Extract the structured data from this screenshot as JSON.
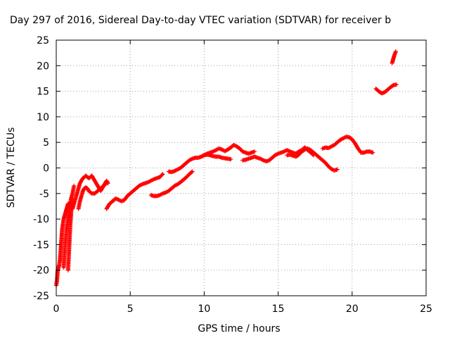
{
  "chart_data": {
    "type": "scatter",
    "title": "Day 297 of 2016, Sidereal Day-to-day VTEC variation (SDTVAR) for receiver b",
    "xlabel": "GPS time / hours",
    "ylabel": "SDTVAR / TECUs",
    "xlim": [
      0,
      25
    ],
    "ylim": [
      -25,
      25
    ],
    "xticks": [
      0,
      5,
      10,
      15,
      20,
      25
    ],
    "yticks": [
      -25,
      -20,
      -15,
      -10,
      -5,
      0,
      5,
      10,
      15,
      20,
      25
    ],
    "grid": true,
    "marker": "+",
    "color": "#ff0000",
    "series": [
      {
        "x": [
          0.0,
          0.05,
          0.1,
          0.15,
          0.2,
          0.25,
          0.3,
          0.35,
          0.4,
          0.45,
          0.5,
          0.55,
          0.6,
          0.65,
          0.7,
          0.75,
          0.8,
          0.85,
          0.9,
          1.0,
          1.1,
          1.2,
          1.3,
          1.4,
          1.5,
          1.6,
          1.7,
          1.8,
          1.9,
          2.0,
          2.1,
          2.2,
          2.3,
          2.4,
          2.5,
          2.6,
          2.7,
          2.8,
          2.9,
          3.0,
          3.1,
          3.2,
          3.3,
          3.4,
          3.5
        ],
        "y": [
          -23.0,
          -22.0,
          -20.0,
          -19.5,
          -19.0,
          -18.0,
          -16.0,
          -14.0,
          -12.0,
          -11.0,
          -10.0,
          -9.5,
          -9.0,
          -8.5,
          -8.0,
          -7.5,
          -7.0,
          -7.0,
          -7.0,
          -7.5,
          -8.0,
          -7.0,
          -6.0,
          -5.0,
          -4.0,
          -3.0,
          -2.5,
          -2.0,
          -1.8,
          -1.5,
          -1.8,
          -2.0,
          -1.8,
          -1.5,
          -2.0,
          -2.5,
          -3.0,
          -3.5,
          -4.0,
          -4.5,
          -4.0,
          -3.5,
          -3.0,
          -2.5,
          -3.0
        ]
      },
      {
        "x": [
          0.5,
          0.6,
          0.7,
          0.8,
          0.9,
          1.0,
          1.1,
          1.2
        ],
        "y": [
          -19.5,
          -15.0,
          -12.0,
          -10.0,
          -8.0,
          -6.0,
          -5.0,
          -3.5
        ]
      },
      {
        "x": [
          0.8,
          0.85,
          0.9,
          0.95,
          1.0,
          1.05,
          1.1
        ],
        "y": [
          -20.0,
          -17.0,
          -14.0,
          -11.0,
          -9.0,
          -7.0,
          -6.0
        ]
      },
      {
        "x": [
          1.5,
          1.6,
          1.7,
          1.8,
          1.9,
          2.0,
          2.1,
          2.2,
          2.4,
          2.6,
          2.8,
          3.0,
          3.2,
          3.4
        ],
        "y": [
          -8.0,
          -6.5,
          -5.5,
          -4.5,
          -4.0,
          -3.8,
          -4.0,
          -4.5,
          -5.0,
          -5.0,
          -4.5,
          -4.0,
          -3.5,
          -3.0
        ]
      },
      {
        "x": [
          3.4,
          3.5,
          3.6,
          3.7,
          3.8,
          3.9,
          4.0,
          4.2,
          4.4,
          4.6,
          4.8,
          5.0,
          5.2,
          5.4,
          5.6,
          5.8,
          6.0,
          6.2,
          6.4,
          6.6,
          6.8,
          7.0,
          7.2
        ],
        "y": [
          -8.0,
          -7.5,
          -7.0,
          -6.8,
          -6.5,
          -6.3,
          -6.0,
          -6.2,
          -6.5,
          -6.3,
          -5.5,
          -5.0,
          -4.5,
          -4.0,
          -3.5,
          -3.2,
          -3.0,
          -2.8,
          -2.5,
          -2.2,
          -2.0,
          -1.8,
          -1.2
        ]
      },
      {
        "x": [
          6.4,
          6.6,
          6.8,
          7.0,
          7.2,
          7.4,
          7.6,
          7.8,
          8.0,
          8.2,
          8.4,
          8.6,
          8.8,
          9.0,
          9.2
        ],
        "y": [
          -5.3,
          -5.5,
          -5.5,
          -5.3,
          -5.0,
          -4.8,
          -4.5,
          -4.0,
          -3.5,
          -3.2,
          -2.8,
          -2.3,
          -1.8,
          -1.2,
          -0.7
        ]
      },
      {
        "x": [
          7.6,
          7.8,
          8.0,
          8.2,
          8.4,
          8.6,
          8.8,
          9.0,
          9.2,
          9.4,
          9.6,
          9.8,
          10.0,
          10.2,
          10.4,
          10.6,
          10.8,
          11.0,
          11.2,
          11.4,
          11.6,
          11.8,
          12.0,
          12.2,
          12.4,
          12.6,
          12.8,
          13.0,
          13.2,
          13.4
        ],
        "y": [
          -0.7,
          -0.8,
          -0.6,
          -0.3,
          0.0,
          0.5,
          1.0,
          1.5,
          1.8,
          2.0,
          2.0,
          2.2,
          2.5,
          2.8,
          3.0,
          3.2,
          3.5,
          3.8,
          3.6,
          3.3,
          3.6,
          4.0,
          4.5,
          4.2,
          3.8,
          3.2,
          3.0,
          2.8,
          3.0,
          3.2
        ]
      },
      {
        "x": [
          9.8,
          10.0,
          10.2,
          10.4,
          10.6,
          10.8,
          11.0,
          11.2,
          11.4,
          11.6,
          11.8
        ],
        "y": [
          2.2,
          2.5,
          2.6,
          2.5,
          2.3,
          2.2,
          2.2,
          2.0,
          1.9,
          1.8,
          1.7
        ]
      },
      {
        "x": [
          12.6,
          12.8,
          13.0,
          13.2,
          13.4,
          13.6,
          13.8,
          14.0,
          14.2,
          14.4,
          14.6,
          14.8,
          15.0,
          15.2,
          15.4,
          15.6,
          15.8,
          16.0,
          16.2,
          16.4,
          16.6,
          16.8,
          17.0,
          17.2,
          17.4
        ],
        "y": [
          1.5,
          1.6,
          1.8,
          2.0,
          2.2,
          2.0,
          1.8,
          1.5,
          1.3,
          1.5,
          2.0,
          2.5,
          2.8,
          3.0,
          3.2,
          3.5,
          3.2,
          3.0,
          2.8,
          3.2,
          3.5,
          4.0,
          3.5,
          3.0,
          2.5
        ]
      },
      {
        "x": [
          15.6,
          15.8,
          16.0,
          16.2,
          16.4,
          16.6,
          16.8,
          17.0,
          17.2,
          17.4,
          17.6,
          17.8,
          18.0,
          18.2,
          18.4,
          18.6,
          18.8,
          19.0
        ],
        "y": [
          2.5,
          2.6,
          2.4,
          2.2,
          2.6,
          3.2,
          3.6,
          3.8,
          3.5,
          3.0,
          2.5,
          2.0,
          1.5,
          1.0,
          0.3,
          -0.2,
          -0.5,
          -0.3
        ]
      },
      {
        "x": [
          18.0,
          18.2,
          18.4,
          18.6,
          18.8,
          19.0,
          19.2,
          19.4,
          19.6,
          19.8,
          20.0,
          20.2,
          20.4,
          20.6,
          20.8,
          21.0,
          21.2,
          21.4
        ],
        "y": [
          3.8,
          4.0,
          3.9,
          4.2,
          4.5,
          5.0,
          5.5,
          5.8,
          6.1,
          6.0,
          5.6,
          4.8,
          3.8,
          3.0,
          3.0,
          3.2,
          3.2,
          3.0
        ]
      },
      {
        "x": [
          21.6,
          21.8,
          22.0,
          22.2,
          22.4,
          22.6,
          22.8,
          23.0
        ],
        "y": [
          15.5,
          15.0,
          14.6,
          14.8,
          15.3,
          15.8,
          16.2,
          16.3
        ]
      },
      {
        "x": [
          22.7,
          22.75,
          22.8,
          22.85,
          22.9,
          22.95
        ],
        "y": [
          20.5,
          21.0,
          21.5,
          22.0,
          22.4,
          22.8
        ]
      }
    ]
  }
}
